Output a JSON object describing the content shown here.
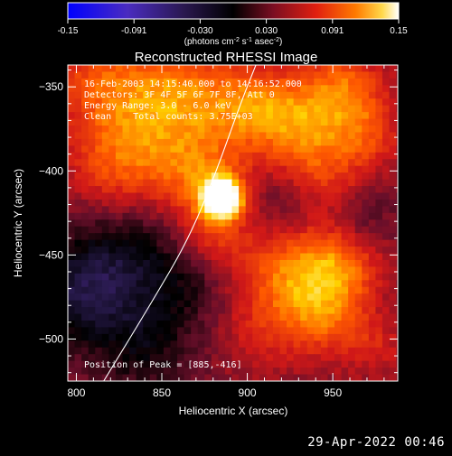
{
  "colorbar": {
    "ticks": [
      "-0.15",
      "-0.091",
      "-0.030",
      "0.030",
      "0.091",
      "0.15"
    ],
    "unit_html": "(photons cm<tspan baseline-shift='super' font-size='7'>-2</tspan> s<tspan baseline-shift='super' font-size='7'>-1</tspan> asec<tspan baseline-shift='super' font-size='7'>-2</tspan>)",
    "unit_text": "(photons cm-2 s-1 asec-2)"
  },
  "chart_data": {
    "type": "heatmap",
    "title": "Reconstructed RHESSI Image",
    "xlabel": "Heliocentric X (arcsec)",
    "ylabel": "Heliocentric Y (arcsec)",
    "xlim": [
      795,
      988
    ],
    "ylim": [
      -525,
      -337
    ],
    "xticks": [
      800,
      850,
      900,
      950
    ],
    "yticks": [
      -350,
      -400,
      -450,
      -500
    ],
    "color_range": [
      -0.15,
      0.15
    ],
    "colormap": [
      "#0000ff",
      "#5a1fa8",
      "#2a1b50",
      "#000000",
      "#6a0f2a",
      "#d01818",
      "#ff5a00",
      "#ffd000",
      "#ffffff"
    ],
    "peak": {
      "x": 885,
      "y": -416
    },
    "limb_curve": [
      [
        816,
        -525
      ],
      [
        843,
        -480
      ],
      [
        866,
        -440
      ],
      [
        882,
        -400
      ],
      [
        896,
        -360
      ],
      [
        905,
        -337
      ]
    ],
    "annotations": [
      "16-Feb-2003 14:15:40.000 to 14:16:52.000",
      "Detectors: 3F 4F 5F 6F 7F 8F, Att 0",
      "Energy Range: 3.0 - 6.0 keV",
      "Clean    Total counts: 3.75E+03"
    ],
    "peak_label": "Position of Peak = [885,-416]"
  },
  "timestamp": "29-Apr-2022 00:46"
}
